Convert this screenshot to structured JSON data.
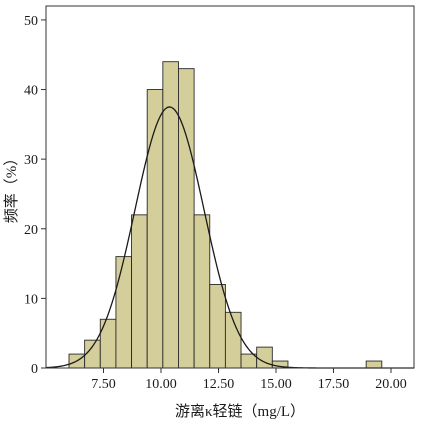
{
  "chart_data": {
    "type": "bar",
    "xlabel": "游离κ轻链（mg/L）",
    "ylabel": "频率（%）",
    "xlim": [
      5.0,
      21.0
    ],
    "ylim": [
      0,
      52
    ],
    "x_ticks": [
      7.5,
      10.0,
      12.5,
      15.0,
      17.5,
      20.0
    ],
    "x_tick_labels": [
      "7.50",
      "10.00",
      "12.50",
      "15.00",
      "17.50",
      "20.00"
    ],
    "y_ticks": [
      0,
      10,
      20,
      30,
      40,
      50
    ],
    "y_tick_labels": [
      "0",
      "10",
      "20",
      "30",
      "40",
      "50"
    ],
    "bin_width": 0.68,
    "bins": [
      {
        "x": 6.0,
        "value": 2
      },
      {
        "x": 6.68,
        "value": 4
      },
      {
        "x": 7.36,
        "value": 7
      },
      {
        "x": 8.04,
        "value": 16
      },
      {
        "x": 8.72,
        "value": 22
      },
      {
        "x": 9.4,
        "value": 40
      },
      {
        "x": 10.08,
        "value": 44
      },
      {
        "x": 10.76,
        "value": 43
      },
      {
        "x": 11.44,
        "value": 22
      },
      {
        "x": 12.12,
        "value": 12
      },
      {
        "x": 12.8,
        "value": 8
      },
      {
        "x": 13.48,
        "value": 2
      },
      {
        "x": 14.16,
        "value": 3
      },
      {
        "x": 14.84,
        "value": 1
      },
      {
        "x": 18.92,
        "value": 1
      }
    ],
    "normal_curve": {
      "mean": 10.37,
      "sd": 1.5,
      "peak": 37.5
    },
    "bar_color": "#d4ce9a",
    "bar_edge": "#2a2a2a",
    "curve_color": "#1a1a1a",
    "grid": false,
    "legend": "none"
  }
}
